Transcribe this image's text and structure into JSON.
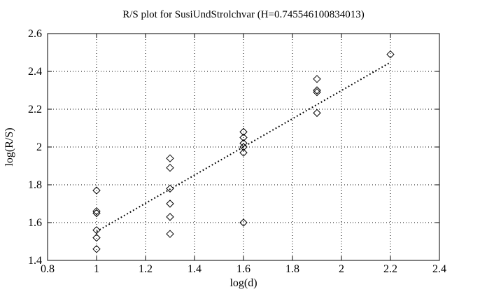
{
  "colors": {
    "foreground": "#000000",
    "background": "#ffffff"
  },
  "chart_data": {
    "type": "scatter",
    "title": "R/S plot for SusiUndStrolchvar (H=0.745546100834013)",
    "xlabel": "log(d)",
    "ylabel": "log(R/S)",
    "xlim": [
      0.8,
      2.4
    ],
    "ylim": [
      1.4,
      2.6
    ],
    "xticks": [
      0.8,
      1,
      1.2,
      1.4,
      1.6,
      1.8,
      2,
      2.2,
      2.4
    ],
    "xtick_labels": [
      "0.8",
      "1",
      "1.2",
      "1.4",
      "1.6",
      "1.8",
      "2",
      "2.2",
      "2.4"
    ],
    "yticks": [
      1.4,
      1.6,
      1.8,
      2,
      2.2,
      2.4,
      2.6
    ],
    "ytick_labels": [
      "1.4",
      "1.6",
      "1.8",
      "2",
      "2.2",
      "2.4",
      "2.6"
    ],
    "grid": true,
    "legend": false,
    "marker": "open-diamond",
    "points": [
      [
        1.0,
        1.77
      ],
      [
        1.0,
        1.66
      ],
      [
        1.0,
        1.65
      ],
      [
        1.0,
        1.56
      ],
      [
        1.0,
        1.52
      ],
      [
        1.0,
        1.46
      ],
      [
        1.3,
        1.94
      ],
      [
        1.3,
        1.89
      ],
      [
        1.3,
        1.78
      ],
      [
        1.3,
        1.7
      ],
      [
        1.3,
        1.63
      ],
      [
        1.3,
        1.54
      ],
      [
        1.6,
        2.08
      ],
      [
        1.6,
        2.05
      ],
      [
        1.6,
        2.02
      ],
      [
        1.6,
        2.0
      ],
      [
        1.6,
        1.97
      ],
      [
        1.6,
        1.6
      ],
      [
        1.9,
        2.36
      ],
      [
        1.9,
        2.3
      ],
      [
        1.9,
        2.29
      ],
      [
        1.9,
        2.18
      ],
      [
        2.2,
        2.49
      ]
    ],
    "fit_line": {
      "H": 0.745546100834013,
      "x1": 1.0,
      "y1": 1.553,
      "x2": 2.2,
      "y2": 2.448,
      "style": "dotted-bold"
    }
  }
}
